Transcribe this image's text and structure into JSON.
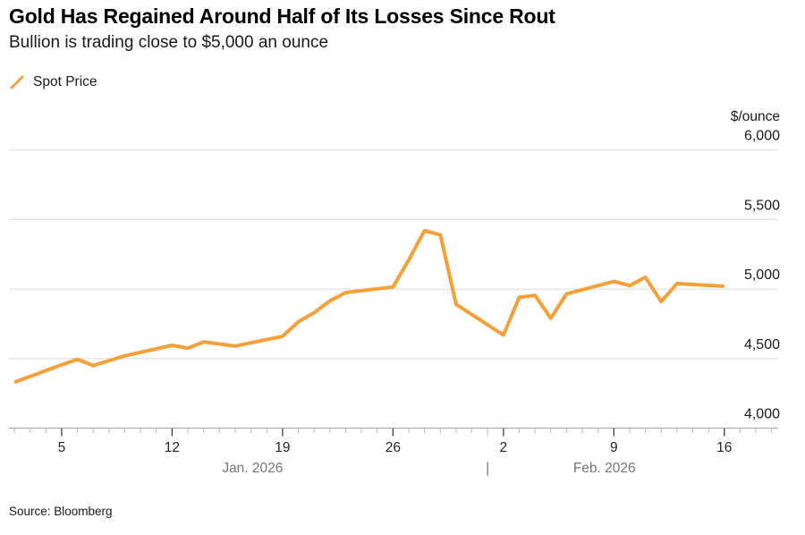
{
  "colors": {
    "accent_orange": "#F6A03A",
    "gridline": "#DCDCDC",
    "axis_line": "#ADADAD",
    "tick_major": "#4A4A4A",
    "tick_minor": "#B9B9B9",
    "x_label": "#262626",
    "text_primary": "#1A1A1A",
    "text_secondary": "#757575"
  },
  "chart_data": {
    "type": "line",
    "title": "Gold Has Regained Around Half of Its Losses Since Rout",
    "subtitle": "Bullion is trading close to $5,000 an ounce",
    "ylabel": "$/ounce",
    "source": "Source: Bloomberg",
    "legend_position": "top-left",
    "y_axis": {
      "range": [
        4000,
        6000
      ],
      "ticks": [
        4000,
        4500,
        5000,
        5500,
        6000
      ],
      "tick_labels": [
        "4,000",
        "4,500",
        "5,000",
        "5,500",
        "6,000"
      ],
      "grid": true
    },
    "x_axis": {
      "start_date": "Jan 2, 2026",
      "end_date": "Feb 16, 2026",
      "day_span": [
        0,
        48
      ],
      "major_ticks": [
        {
          "label": "5",
          "day": 3
        },
        {
          "label": "12",
          "day": 10
        },
        {
          "label": "19",
          "day": 17
        },
        {
          "label": "26",
          "day": 24
        },
        {
          "label": "2",
          "day": 31
        },
        {
          "label": "9",
          "day": 38
        },
        {
          "label": "16",
          "day": 45
        }
      ],
      "month_boundary_day": 30,
      "separator": "|",
      "separator_day": 30,
      "month_labels": [
        {
          "label": "Jan. 2026",
          "center_day": 15.1
        },
        {
          "label": "Feb. 2026",
          "center_day": 37.4
        }
      ]
    },
    "series": [
      {
        "name": "Spot Price",
        "color": "#F6A03A",
        "points": [
          {
            "date": "Jan 2",
            "day": 0,
            "value": 4330
          },
          {
            "date": "Jan 5",
            "day": 3,
            "value": 4455
          },
          {
            "date": "Jan 6",
            "day": 4,
            "value": 4495
          },
          {
            "date": "Jan 7",
            "day": 5,
            "value": 4450
          },
          {
            "date": "Jan 8",
            "day": 6,
            "value": 4485
          },
          {
            "date": "Jan 9",
            "day": 7,
            "value": 4520
          },
          {
            "date": "Jan 12",
            "day": 10,
            "value": 4595
          },
          {
            "date": "Jan 13",
            "day": 11,
            "value": 4575
          },
          {
            "date": "Jan 14",
            "day": 12,
            "value": 4620
          },
          {
            "date": "Jan 15",
            "day": 13,
            "value": 4605
          },
          {
            "date": "Jan 16",
            "day": 14,
            "value": 4590
          },
          {
            "date": "Jan 19",
            "day": 17,
            "value": 4660
          },
          {
            "date": "Jan 20",
            "day": 18,
            "value": 4765
          },
          {
            "date": "Jan 21",
            "day": 19,
            "value": 4830
          },
          {
            "date": "Jan 22",
            "day": 20,
            "value": 4915
          },
          {
            "date": "Jan 23",
            "day": 21,
            "value": 4975
          },
          {
            "date": "Jan 26",
            "day": 24,
            "value": 5015
          },
          {
            "date": "Jan 27",
            "day": 25,
            "value": 5210
          },
          {
            "date": "Jan 28",
            "day": 26,
            "value": 5420
          },
          {
            "date": "Jan 29",
            "day": 27,
            "value": 5390
          },
          {
            "date": "Jan 30",
            "day": 28,
            "value": 4890
          },
          {
            "date": "Feb 2",
            "day": 31,
            "value": 4670
          },
          {
            "date": "Feb 3",
            "day": 32,
            "value": 4940
          },
          {
            "date": "Feb 4",
            "day": 33,
            "value": 4955
          },
          {
            "date": "Feb 5",
            "day": 34,
            "value": 4790
          },
          {
            "date": "Feb 6",
            "day": 35,
            "value": 4965
          },
          {
            "date": "Feb 9",
            "day": 38,
            "value": 5055
          },
          {
            "date": "Feb 10",
            "day": 39,
            "value": 5025
          },
          {
            "date": "Feb 11",
            "day": 40,
            "value": 5085
          },
          {
            "date": "Feb 12",
            "day": 41,
            "value": 4910
          },
          {
            "date": "Feb 13",
            "day": 42,
            "value": 5040
          },
          {
            "date": "Feb 16",
            "day": 45,
            "value": 5020
          }
        ]
      }
    ]
  }
}
